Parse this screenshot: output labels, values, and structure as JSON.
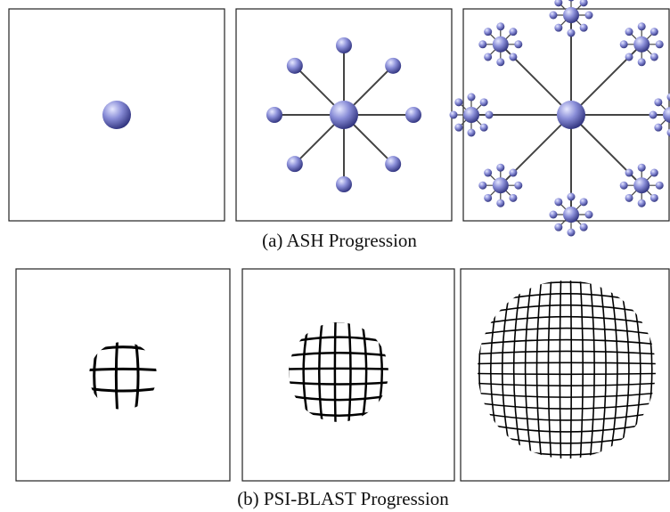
{
  "captions": {
    "a": "(a) ASH Progression",
    "b": "(b) PSI-BLAST Progression"
  }
}
